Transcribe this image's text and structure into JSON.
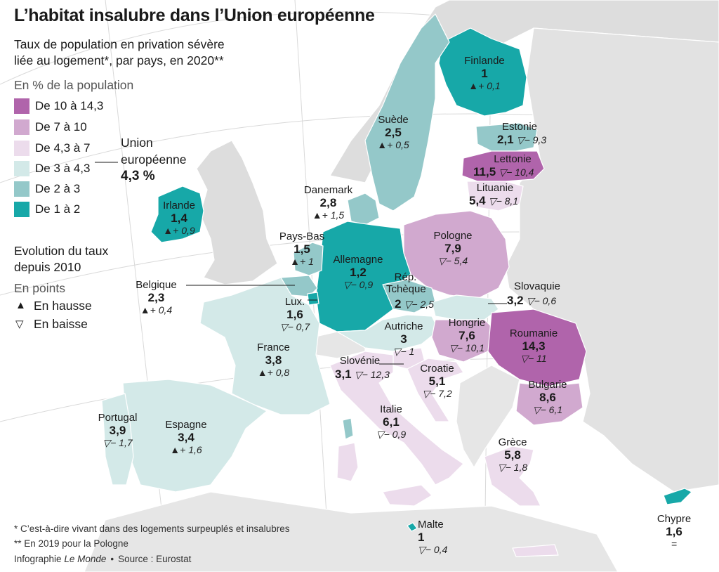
{
  "title": "L’habitat insalubre dans l’Union européenne",
  "subtitle_line1": "Taux de population en privation sévère",
  "subtitle_line2": "liée au logement*, par pays, en 2020**",
  "legend": {
    "unit": "En % de la population",
    "classes": [
      {
        "label": "De 10 à 14,3",
        "color": "#b064ab"
      },
      {
        "label": "De 7 à 10",
        "color": "#d1a9cf"
      },
      {
        "label": "De 4,3 à 7",
        "color": "#ecdcec"
      },
      {
        "label": "De 3 à 4,3",
        "color": "#d3e9e8"
      },
      {
        "label": "De 2 à 3",
        "color": "#94c8c9"
      },
      {
        "label": "De 1 à 2",
        "color": "#17a8a8"
      }
    ],
    "eu_label_line1": "Union",
    "eu_label_line2": "européenne",
    "eu_value": "4,3 %",
    "evolution_line1": "Evolution du taux",
    "evolution_line2": "depuis 2010",
    "evolution_unit": "En points",
    "up_label": "En hausse",
    "down_label": "En baisse",
    "up_symbol": "▲",
    "down_symbol": "▽"
  },
  "countries": {
    "finlande": {
      "name": "Finlande",
      "value": "1",
      "evolution": "▲+ 0,1"
    },
    "suede": {
      "name": "Suède",
      "value": "2,5",
      "evolution": "▲+ 0,5"
    },
    "estonie": {
      "name": "Estonie",
      "value": "2,1",
      "evolution": "▽− 9,3"
    },
    "lettonie": {
      "name": "Lettonie",
      "value": "11,5",
      "evolution": "▽− 10,4"
    },
    "lituanie": {
      "name": "Lituanie",
      "value": "5,4",
      "evolution": "▽− 8,1"
    },
    "danemark": {
      "name": "Danemark",
      "value": "2,8",
      "evolution": "▲+ 1,5"
    },
    "irlande": {
      "name": "Irlande",
      "value": "1,4",
      "evolution": "▲+ 0,9"
    },
    "paysbas": {
      "name": "Pays-Bas",
      "value": "1,5",
      "evolution": "▲+ 1"
    },
    "allemagne": {
      "name": "Allemagne",
      "value": "1,2",
      "evolution": "▽− 0,9"
    },
    "pologne": {
      "name": "Pologne",
      "value": "7,9",
      "evolution": "▽− 5,4"
    },
    "belgique": {
      "name": "Belgique",
      "value": "2,3",
      "evolution": "▲+ 0,4"
    },
    "lux": {
      "name": "Lux.",
      "value": "1,6",
      "evolution": "▽− 0,7"
    },
    "tcheque_line1": "Rép.",
    "tcheque": {
      "name": "Tchèque",
      "value": "2",
      "evolution": "▽− 2,5"
    },
    "slovaquie": {
      "name": "Slovaquie",
      "value": "3,2",
      "evolution": "▽− 0,6"
    },
    "autriche": {
      "name": "Autriche",
      "value": "3",
      "evolution": "▽− 1"
    },
    "hongrie": {
      "name": "Hongrie",
      "value": "7,6",
      "evolution": "▽− 10,1"
    },
    "roumanie": {
      "name": "Roumanie",
      "value": "14,3",
      "evolution": "▽− 11"
    },
    "france": {
      "name": "France",
      "value": "3,8",
      "evolution": "▲+ 0,8"
    },
    "slovenie": {
      "name": "Slovénie",
      "value": "3,1",
      "evolution": "▽− 12,3"
    },
    "croatie": {
      "name": "Croatie",
      "value": "5,1",
      "evolution": "▽− 7,2"
    },
    "bulgarie": {
      "name": "Bulgarie",
      "value": "8,6",
      "evolution": "▽− 6,1"
    },
    "italie": {
      "name": "Italie",
      "value": "6,1",
      "evolution": "▽− 0,9"
    },
    "portugal": {
      "name": "Portugal",
      "value": "3,9",
      "evolution": "▽− 1,7"
    },
    "espagne": {
      "name": "Espagne",
      "value": "3,4",
      "evolution": "▲+ 1,6"
    },
    "grece": {
      "name": "Grèce",
      "value": "5,8",
      "evolution": "▽− 1,8"
    },
    "malte": {
      "name": "Malte",
      "value": "1",
      "evolution": "▽− 0,4"
    },
    "chypre": {
      "name": "Chypre",
      "value": "1,6",
      "evolution": "="
    }
  },
  "footnote1": "* C’est-à-dire vivant dans des logements surpeuplés et insalubres",
  "footnote2": "** En 2019 pour la Pologne",
  "credit_prefix": "Infographie ",
  "credit_outlet": "Le Monde",
  "credit_sep": "•",
  "credit_source": "Source : Eurostat"
}
